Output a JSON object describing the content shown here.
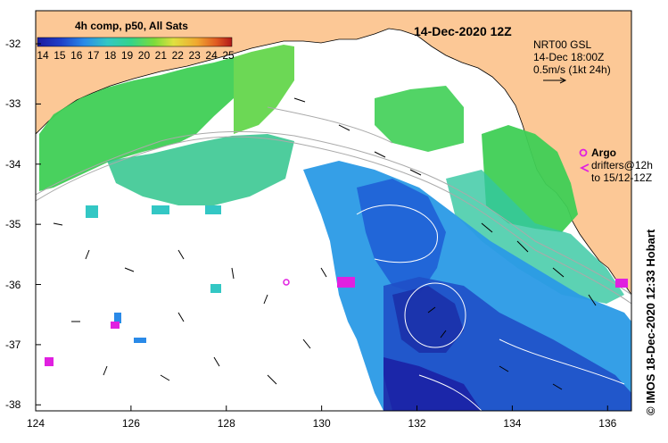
{
  "header": {
    "date_title": "14-Dec-2020 12Z"
  },
  "colorbar": {
    "title": "4h comp, p50, All Sats",
    "ticks": [
      "14",
      "15",
      "16",
      "17",
      "18",
      "19",
      "20",
      "21",
      "22",
      "23",
      "24",
      "25"
    ],
    "colors": [
      "#1a1aa0",
      "#1f3fc8",
      "#2a6fe6",
      "#2fa3e8",
      "#33c7c4",
      "#33d48a",
      "#4fd94a",
      "#9ae03a",
      "#e0e040",
      "#f0a830",
      "#e05a22",
      "#b01818"
    ]
  },
  "currents_legend": {
    "line1": "NRT00 GSL",
    "line2": "14-Dec 18:00Z",
    "line3": "0.5m/s (1kt 24h)"
  },
  "argo_legend": {
    "label": "Argo",
    "line1": "drifters@12h",
    "line2": "to 15/12-12Z"
  },
  "credit": "© IMOS 18-Dec-2020 12:33 Hobart",
  "axes": {
    "x_ticks": [
      "124",
      "126",
      "128",
      "130",
      "132",
      "134",
      "136"
    ],
    "y_ticks": [
      "-32",
      "-33",
      "-34",
      "-35",
      "-36",
      "-37",
      "-38"
    ]
  },
  "colors": {
    "land": "#fcc896",
    "argo": "#e020e0",
    "contour": "#aaaaaa"
  }
}
